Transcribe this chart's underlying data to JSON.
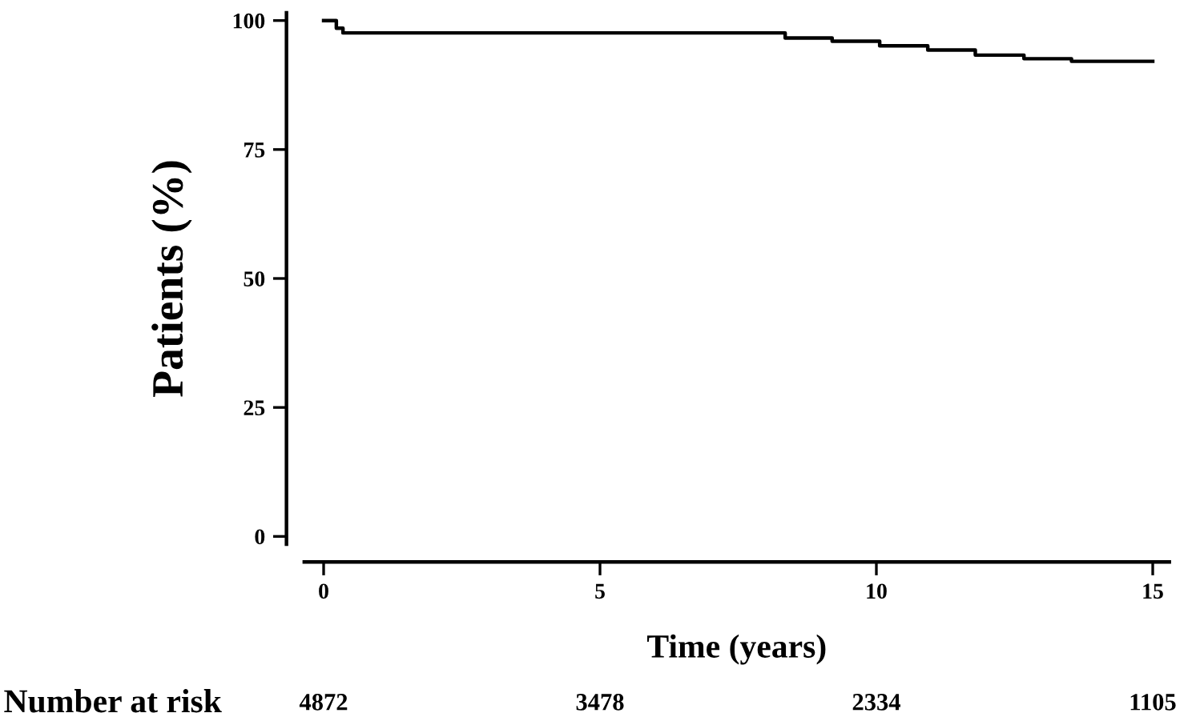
{
  "chart_data": {
    "type": "step",
    "xlabel": "Time (years)",
    "ylabel": "Patients (%)",
    "x": [
      0,
      0.23,
      0.35,
      8.35,
      9.2,
      10.06,
      10.93,
      11.79,
      12.67,
      13.53,
      15
    ],
    "values": [
      100,
      98.5,
      97.6,
      96.6,
      96.0,
      95.1,
      94.3,
      93.3,
      92.6,
      92.1,
      92.1
    ],
    "color": "#000000",
    "xlim": [
      -0.35,
      15.3
    ],
    "ylim": [
      -1.5,
      101.5
    ],
    "xticks": [
      0,
      5,
      10,
      15
    ],
    "yticks": [
      0,
      25,
      50,
      75,
      100
    ],
    "grid": false,
    "legend": false,
    "marker": "none",
    "line_style": "solid",
    "annotations": [
      "Number at risk",
      "4872",
      "3478",
      "2334",
      "1105"
    ]
  }
}
